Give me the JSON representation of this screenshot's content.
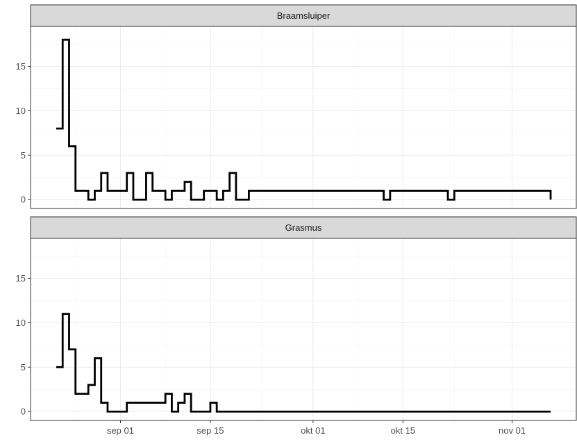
{
  "chart_data": {
    "type": "line",
    "step": true,
    "x_axis": {
      "type": "date",
      "range": [
        "2021-08-18",
        "2021-11-11"
      ],
      "ticks": [
        {
          "date": "2021-09-01",
          "label": "sep 01"
        },
        {
          "date": "2021-09-15",
          "label": "sep 15"
        },
        {
          "date": "2021-10-01",
          "label": "okt 01"
        },
        {
          "date": "2021-10-15",
          "label": "okt 15"
        },
        {
          "date": "2021-11-01",
          "label": "nov 01"
        }
      ],
      "minor_ticks": [
        "2021-08-25",
        "2021-09-08",
        "2021-09-23",
        "2021-10-08",
        "2021-10-23"
      ]
    },
    "y_axis": {
      "range": [
        -1,
        19.5
      ],
      "ticks": [
        0,
        5,
        10,
        15
      ],
      "minor_ticks": [
        2.5,
        7.5,
        12.5,
        17.5
      ]
    },
    "grid": true,
    "facets": [
      {
        "title": "Braamsluiper",
        "x": [
          "2021-08-22",
          "2021-08-23",
          "2021-08-24",
          "2021-08-25",
          "2021-08-26",
          "2021-08-27",
          "2021-08-28",
          "2021-08-29",
          "2021-08-30",
          "2021-08-31",
          "2021-09-01",
          "2021-09-02",
          "2021-09-03",
          "2021-09-04",
          "2021-09-05",
          "2021-09-06",
          "2021-09-07",
          "2021-09-08",
          "2021-09-09",
          "2021-09-10",
          "2021-09-11",
          "2021-09-12",
          "2021-09-13",
          "2021-09-14",
          "2021-09-15",
          "2021-09-16",
          "2021-09-17",
          "2021-09-18",
          "2021-09-19",
          "2021-09-20",
          "2021-09-21",
          "2021-10-12",
          "2021-10-13",
          "2021-10-22",
          "2021-10-23",
          "2021-11-07"
        ],
        "values": [
          8,
          18,
          6,
          1,
          1,
          0,
          1,
          3,
          1,
          1,
          1,
          3,
          0,
          0,
          3,
          1,
          1,
          0,
          1,
          1,
          2,
          0,
          0,
          1,
          1,
          0,
          1,
          3,
          0,
          0,
          1,
          0,
          1,
          0,
          1,
          0
        ]
      },
      {
        "title": "Grasmus",
        "x": [
          "2021-08-22",
          "2021-08-23",
          "2021-08-24",
          "2021-08-25",
          "2021-08-26",
          "2021-08-27",
          "2021-08-28",
          "2021-08-29",
          "2021-08-30",
          "2021-08-31",
          "2021-09-01",
          "2021-09-02",
          "2021-09-03",
          "2021-09-04",
          "2021-09-05",
          "2021-09-06",
          "2021-09-07",
          "2021-09-08",
          "2021-09-09",
          "2021-09-10",
          "2021-09-11",
          "2021-09-12",
          "2021-09-13",
          "2021-09-14",
          "2021-09-15",
          "2021-09-16",
          "2021-11-07"
        ],
        "values": [
          5,
          11,
          7,
          2,
          2,
          3,
          6,
          1,
          0,
          0,
          0,
          1,
          1,
          1,
          1,
          1,
          1,
          2,
          0,
          1,
          2,
          0,
          0,
          0,
          1,
          0,
          0
        ]
      }
    ]
  }
}
